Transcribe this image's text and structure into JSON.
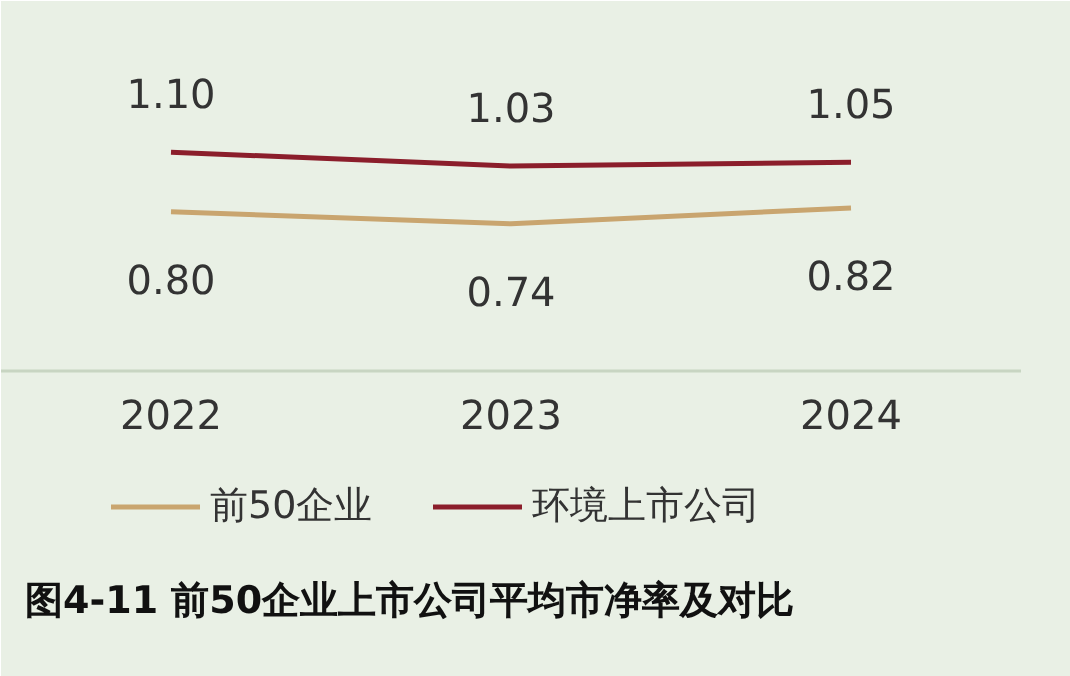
{
  "chart_data": {
    "type": "line",
    "title": "图4-11 前50企业上市公司平均市净率及对比",
    "categories": [
      "2022",
      "2023",
      "2024"
    ],
    "series": [
      {
        "name": "前50企业",
        "color": "#c9a56f",
        "values": [
          0.8,
          0.74,
          0.82
        ],
        "value_labels": [
          "0.80",
          "0.74",
          "0.82"
        ]
      },
      {
        "name": "环境上市公司",
        "color": "#8b1e2b",
        "values": [
          1.1,
          1.03,
          1.05
        ],
        "value_labels": [
          "1.10",
          "1.03",
          "1.05"
        ]
      }
    ],
    "ylim": [
      0,
      1.86
    ],
    "legend": "bottom",
    "tick_labels": "x"
  }
}
